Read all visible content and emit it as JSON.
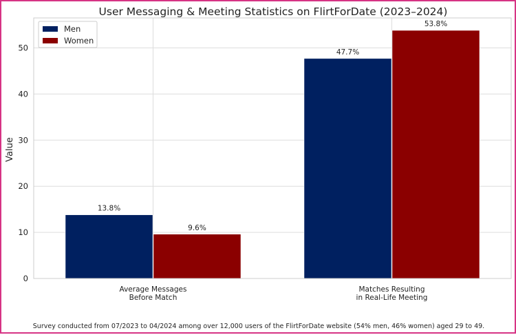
{
  "chart_data": {
    "type": "bar",
    "title": "User Messaging & Meeting Statistics on FlirtForDate (2023–2024)",
    "xlabel": "",
    "ylabel": "Value",
    "ylim": [
      0,
      56.5
    ],
    "yticks": [
      0,
      10,
      20,
      30,
      40,
      50
    ],
    "grid": true,
    "legend_position": "top-left",
    "categories": [
      [
        "Average Messages",
        "Before Match"
      ],
      [
        "Matches Resulting",
        "in Real-Life Meeting"
      ]
    ],
    "series": [
      {
        "name": "Men",
        "color": "#002060",
        "values": [
          13.8,
          47.7
        ],
        "labels": [
          "13.8%",
          "47.7%"
        ]
      },
      {
        "name": "Women",
        "color": "#8b0000",
        "values": [
          9.6,
          53.8
        ],
        "labels": [
          "9.6%",
          "53.8%"
        ]
      }
    ],
    "footnote": "Survey conducted from 07/2023 to 04/2024 among over 12,000 users of the FlirtForDate website (54% men, 46% women) aged 29 to 49."
  },
  "theme": {
    "border_color": "#d63384",
    "grid_color": "#dddddd",
    "axis_color": "#cccccc",
    "text_color": "#222222"
  }
}
